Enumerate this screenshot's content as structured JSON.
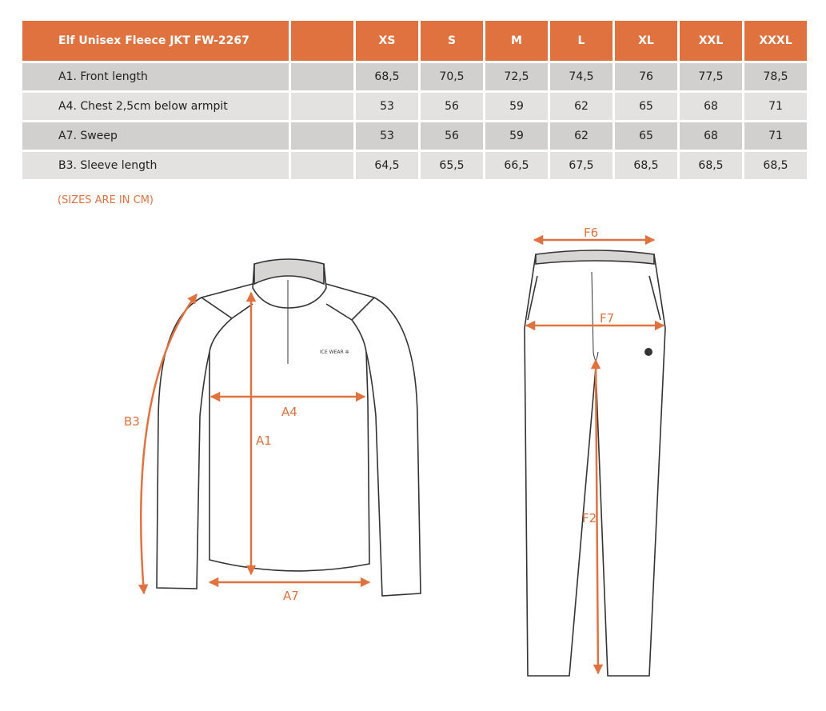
{
  "table": {
    "title": "Elf Unisex Fleece JKT FW-2267",
    "sizes": [
      "XS",
      "S",
      "M",
      "L",
      "XL",
      "XXL",
      "XXXL"
    ],
    "rows": [
      {
        "label": "A1. Front length",
        "values": [
          "68,5",
          "70,5",
          "72,5",
          "74,5",
          "76",
          "77,5",
          "78,5"
        ]
      },
      {
        "label": "A4. Chest 2,5cm below armpit",
        "values": [
          "53",
          "56",
          "59",
          "62",
          "65",
          "68",
          "71"
        ]
      },
      {
        "label": "A7. Sweep",
        "values": [
          "53",
          "56",
          "59",
          "62",
          "65",
          "68",
          "71"
        ]
      },
      {
        "label": "B3. Sleeve length",
        "values": [
          "64,5",
          "65,5",
          "66,5",
          "67,5",
          "68,5",
          "68,5",
          "68,5"
        ]
      }
    ]
  },
  "note": "(SIZES ARE IN CM)",
  "diagram": {
    "labels": {
      "a1": "A1",
      "a4": "A4",
      "a7": "A7",
      "b3": "B3",
      "f2": "F2",
      "f6": "F6",
      "f7": "F7"
    },
    "logo": "ICE WEAR"
  },
  "colors": {
    "accent": "#e07240",
    "row_dark": "#d1d0ce",
    "row_light": "#e3e2e0"
  }
}
